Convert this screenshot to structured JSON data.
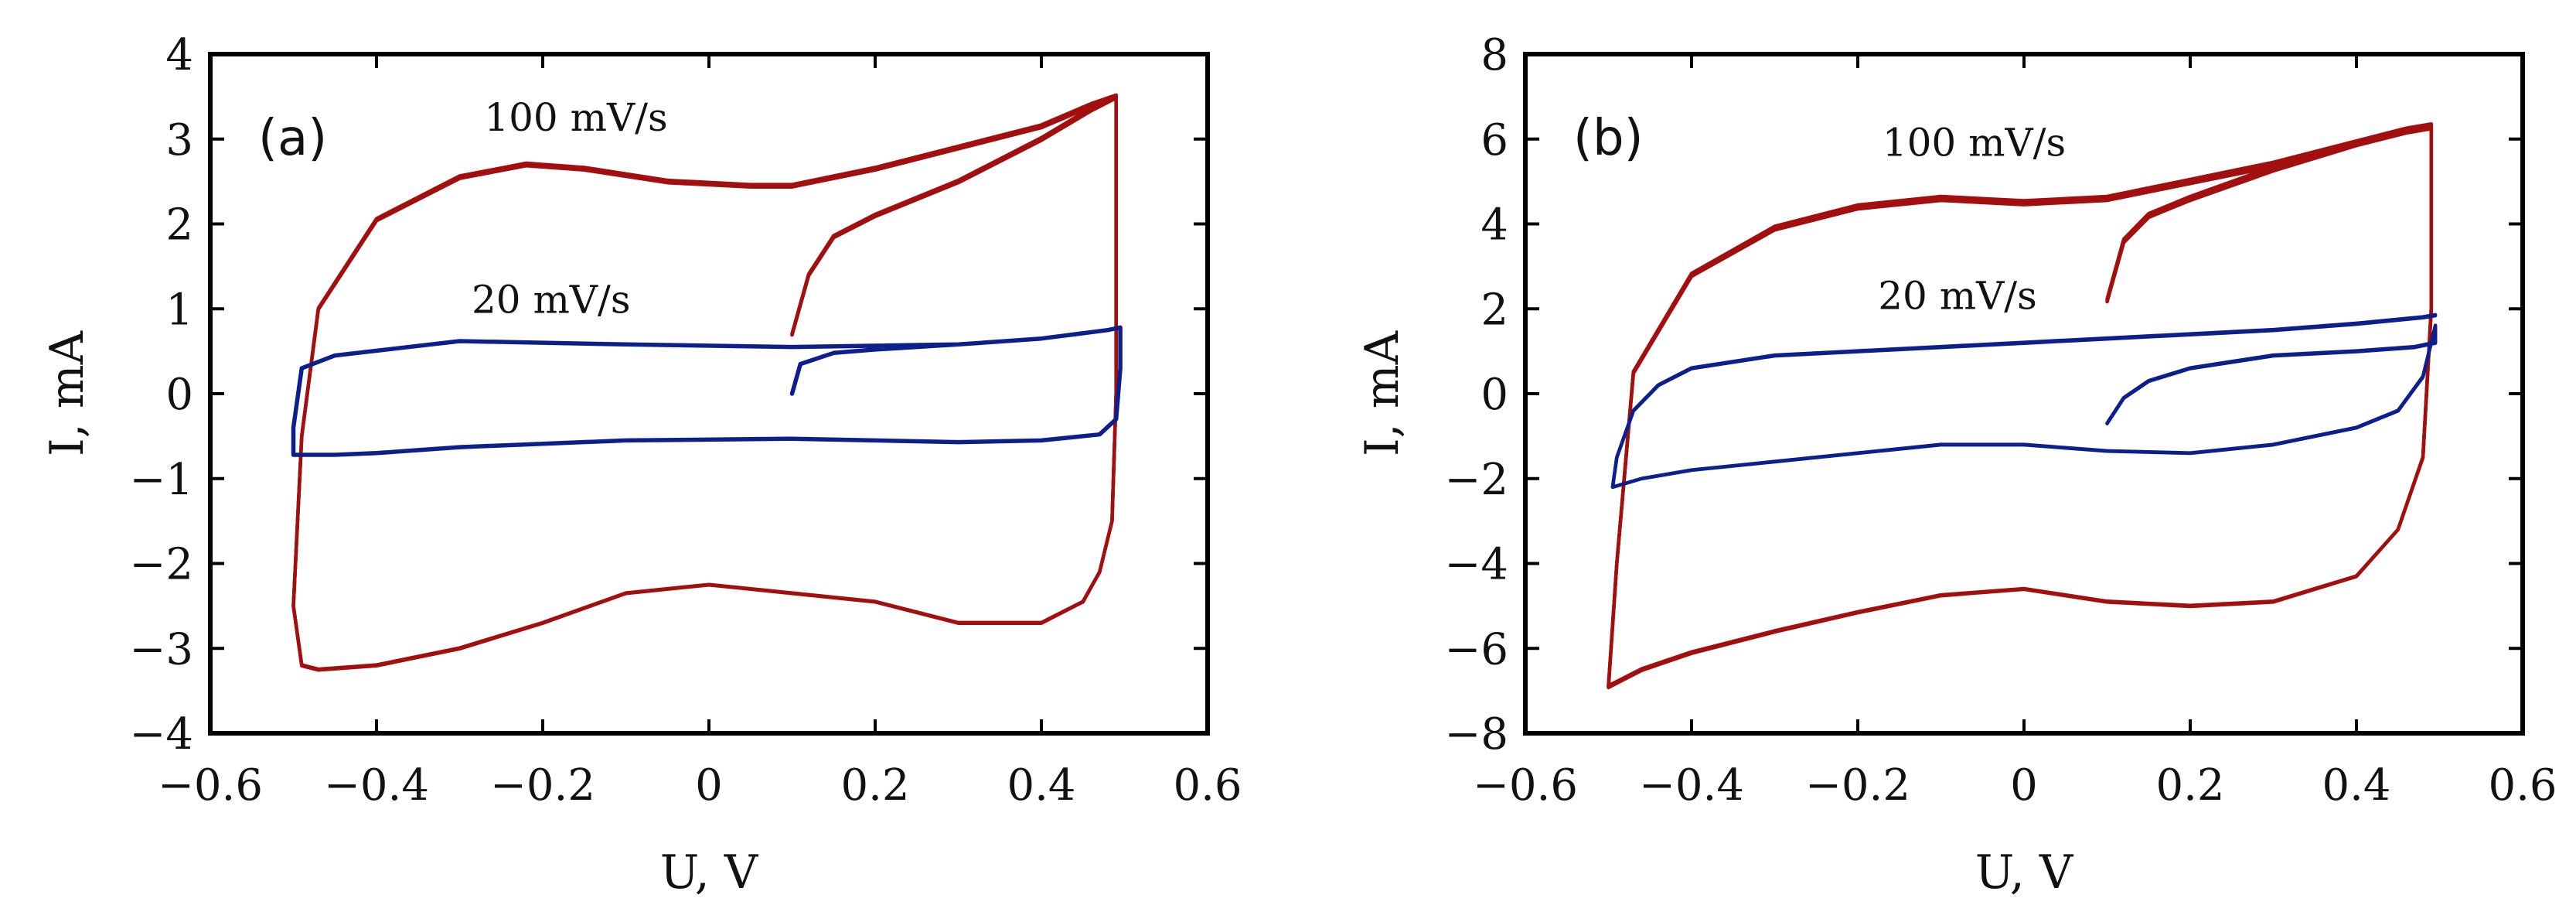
{
  "chart_data": [
    {
      "id": "a",
      "type": "line",
      "panel_label": "(a)",
      "title": "",
      "xlabel": "U, V",
      "ylabel": "I, mA",
      "xlim": [
        -0.6,
        0.6
      ],
      "ylim": [
        -4,
        4
      ],
      "xticks": [
        -0.6,
        -0.4,
        -0.2,
        0,
        0.2,
        0.4,
        0.6
      ],
      "xtick_labels": [
        "−0.6",
        "−0.4",
        "−0.2",
        "0",
        "0.2",
        "0.4",
        "0.6"
      ],
      "yticks": [
        -4,
        -3,
        -2,
        -1,
        0,
        1,
        2,
        3,
        4
      ],
      "ytick_labels": [
        "−4",
        "−3",
        "−2",
        "−1",
        "0",
        "1",
        "2",
        "3",
        "4"
      ],
      "annotations": [
        {
          "text": "100 mV/s",
          "x": -0.16,
          "y": 3.1
        },
        {
          "text": "20 mV/s",
          "x": -0.19,
          "y": 0.95
        }
      ],
      "series": [
        {
          "name": "100 mV/s",
          "color": "#a30f0f",
          "passes": 3,
          "offset": 0.07,
          "x": [
            0.1,
            0.12,
            0.15,
            0.2,
            0.3,
            0.4,
            0.46,
            0.49,
            0.49,
            0.485,
            0.47,
            0.45,
            0.4,
            0.3,
            0.2,
            0.1,
            0.0,
            -0.1,
            -0.2,
            -0.3,
            -0.4,
            -0.47,
            -0.49,
            -0.5,
            -0.49,
            -0.47,
            -0.4,
            -0.3,
            -0.22,
            -0.15,
            -0.05,
            0.05,
            0.1,
            0.2,
            0.3,
            0.4,
            0.46,
            0.49
          ],
          "y": [
            0.7,
            1.4,
            1.85,
            2.1,
            2.5,
            3.0,
            3.35,
            3.5,
            0.0,
            -1.5,
            -2.1,
            -2.45,
            -2.7,
            -2.7,
            -2.45,
            -2.35,
            -2.25,
            -2.35,
            -2.7,
            -3.0,
            -3.2,
            -3.25,
            -3.2,
            -2.5,
            -0.5,
            1.0,
            2.05,
            2.55,
            2.7,
            2.65,
            2.5,
            2.45,
            2.45,
            2.65,
            2.9,
            3.15,
            3.4,
            3.5
          ]
        },
        {
          "name": "20 mV/s",
          "color": "#0c1f8c",
          "passes": 1,
          "offset": 0.0,
          "x": [
            0.1,
            0.11,
            0.15,
            0.2,
            0.3,
            0.4,
            0.48,
            0.495,
            0.495,
            0.49,
            0.47,
            0.4,
            0.3,
            0.1,
            -0.1,
            -0.3,
            -0.4,
            -0.45,
            -0.5,
            -0.5,
            -0.49,
            -0.45,
            -0.3,
            -0.1,
            0.1,
            0.3,
            0.4,
            0.48,
            0.495
          ],
          "y": [
            0.0,
            0.35,
            0.48,
            0.52,
            0.58,
            0.65,
            0.75,
            0.78,
            0.3,
            -0.3,
            -0.48,
            -0.55,
            -0.57,
            -0.53,
            -0.55,
            -0.63,
            -0.7,
            -0.72,
            -0.72,
            -0.4,
            0.3,
            0.45,
            0.62,
            0.58,
            0.55,
            0.58,
            0.65,
            0.75,
            0.78
          ]
        }
      ]
    },
    {
      "id": "b",
      "type": "line",
      "panel_label": "(b)",
      "title": "",
      "xlabel": "U, V",
      "ylabel": "I, mA",
      "xlim": [
        -0.6,
        0.6
      ],
      "ylim": [
        -8,
        8
      ],
      "xticks": [
        -0.6,
        -0.4,
        -0.2,
        0,
        0.2,
        0.4,
        0.6
      ],
      "xtick_labels": [
        "−0.6",
        "−0.4",
        "−0.2",
        "0",
        "0.2",
        "0.4",
        "0.6"
      ],
      "yticks": [
        -8,
        -6,
        -4,
        -2,
        0,
        2,
        4,
        6,
        8
      ],
      "ytick_labels": [
        "−8",
        "−6",
        "−4",
        "−2",
        "0",
        "2",
        "4",
        "6",
        "8"
      ],
      "annotations": [
        {
          "text": "100 mV/s",
          "x": -0.06,
          "y": 5.6
        },
        {
          "text": "20 mV/s",
          "x": -0.08,
          "y": 2.0
        }
      ],
      "series": [
        {
          "name": "100 mV/s",
          "color": "#a30f0f",
          "passes": 3,
          "offset": 0.12,
          "x": [
            0.1,
            0.12,
            0.15,
            0.2,
            0.3,
            0.4,
            0.46,
            0.49,
            0.49,
            0.48,
            0.45,
            0.4,
            0.3,
            0.2,
            0.1,
            0.0,
            -0.1,
            -0.2,
            -0.3,
            -0.4,
            -0.46,
            -0.49,
            -0.5,
            -0.49,
            -0.47,
            -0.4,
            -0.3,
            -0.2,
            -0.1,
            0.0,
            0.1,
            0.2,
            0.3,
            0.4,
            0.46,
            0.49
          ],
          "y": [
            2.2,
            3.6,
            4.2,
            4.6,
            5.3,
            5.9,
            6.2,
            6.3,
            2.0,
            -1.5,
            -3.2,
            -4.3,
            -4.9,
            -5.0,
            -4.9,
            -4.6,
            -4.75,
            -5.15,
            -5.6,
            -6.1,
            -6.5,
            -6.8,
            -6.9,
            -4.0,
            0.5,
            2.8,
            3.9,
            4.4,
            4.6,
            4.5,
            4.6,
            5.0,
            5.4,
            5.9,
            6.2,
            6.3
          ]
        },
        {
          "name": "20 mV/s",
          "color": "#0c1f8c",
          "passes": 2,
          "offset": 0.09,
          "x": [
            0.1,
            0.12,
            0.15,
            0.2,
            0.3,
            0.4,
            0.47,
            0.495,
            0.495,
            0.48,
            0.45,
            0.4,
            0.3,
            0.2,
            0.1,
            0.0,
            -0.1,
            -0.2,
            -0.3,
            -0.4,
            -0.46,
            -0.495,
            -0.49,
            -0.47,
            -0.44,
            -0.4,
            -0.3,
            -0.2,
            -0.1,
            0.0,
            0.1,
            0.2,
            0.3,
            0.4,
            0.48,
            0.495
          ],
          "y": [
            -0.7,
            -0.1,
            0.3,
            0.6,
            0.9,
            1.0,
            1.1,
            1.2,
            1.6,
            0.4,
            -0.4,
            -0.8,
            -1.2,
            -1.4,
            -1.35,
            -1.2,
            -1.2,
            -1.4,
            -1.6,
            -1.8,
            -2.0,
            -2.2,
            -1.5,
            -0.4,
            0.2,
            0.6,
            0.9,
            1.0,
            1.1,
            1.2,
            1.3,
            1.4,
            1.5,
            1.65,
            1.8,
            1.85
          ]
        }
      ]
    }
  ]
}
